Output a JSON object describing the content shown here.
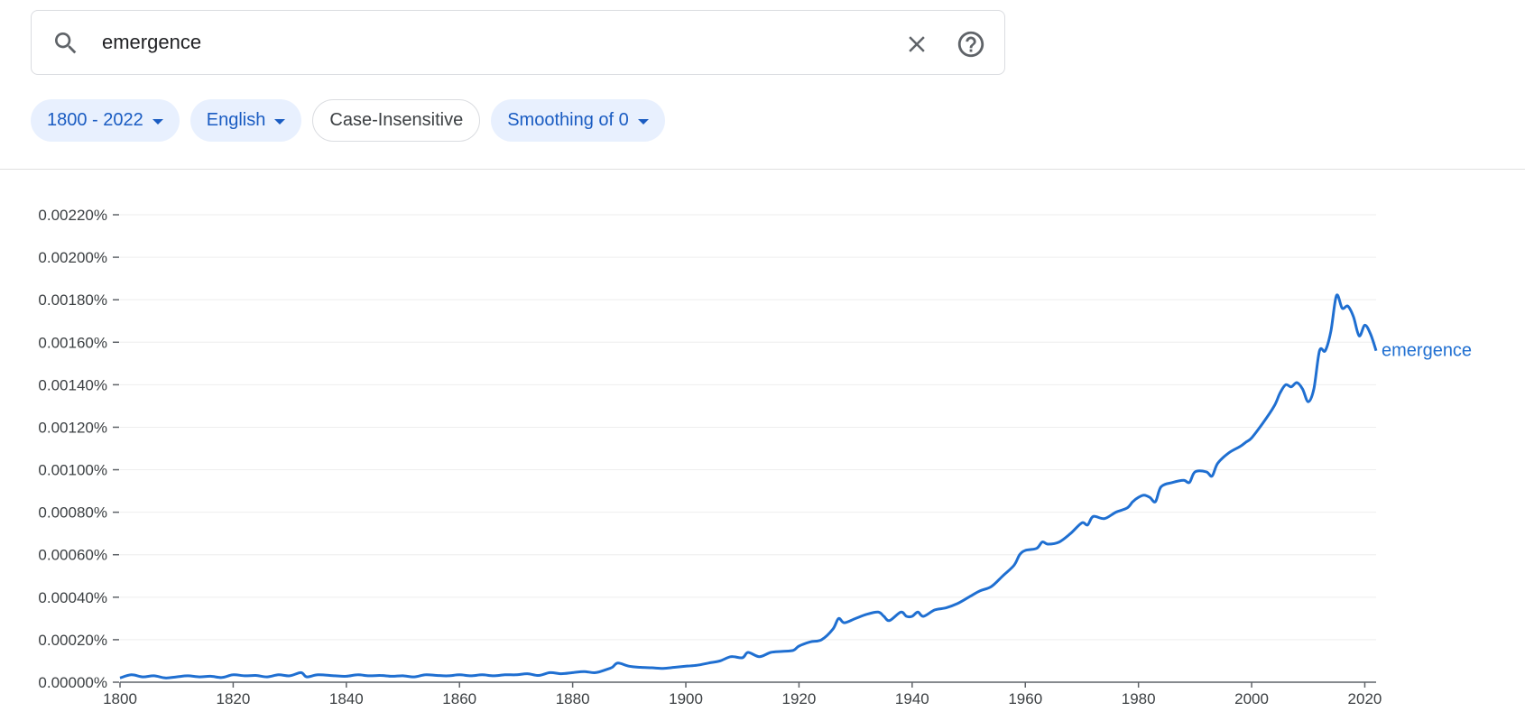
{
  "search": {
    "value": "emergence"
  },
  "icons": {
    "search": "search-icon",
    "clear": "close-icon",
    "help": "help-circle-icon",
    "dropdown": "caret-down-icon"
  },
  "filters": {
    "year_range": "1800 - 2022",
    "corpus": "English",
    "case": "Case-Insensitive",
    "smoothing": "Smoothing of 0"
  },
  "colors": {
    "line": "#1f6fd1",
    "chip_bg": "#e8f0fe",
    "chip_text": "#1a5cc2"
  },
  "chart_data": {
    "type": "line",
    "xlim": [
      1800,
      2022
    ],
    "ylim": [
      0,
      0.0022
    ],
    "x_ticks": [
      1800,
      1820,
      1840,
      1860,
      1880,
      1900,
      1920,
      1940,
      1960,
      1980,
      2000,
      2020
    ],
    "y_ticks": [
      {
        "value": 0.0,
        "label": "0.00000%"
      },
      {
        "value": 0.0002,
        "label": "0.00020%"
      },
      {
        "value": 0.0004,
        "label": "0.00040%"
      },
      {
        "value": 0.0006,
        "label": "0.00060%"
      },
      {
        "value": 0.0008,
        "label": "0.00080%"
      },
      {
        "value": 0.001,
        "label": "0.00100%"
      },
      {
        "value": 0.0012,
        "label": "0.00120%"
      },
      {
        "value": 0.0014,
        "label": "0.00140%"
      },
      {
        "value": 0.0016,
        "label": "0.00160%"
      },
      {
        "value": 0.0018,
        "label": "0.00180%"
      },
      {
        "value": 0.002,
        "label": "0.00200%"
      },
      {
        "value": 0.0022,
        "label": "0.00220%"
      }
    ],
    "series": [
      {
        "name": "emergence",
        "x": [
          1800,
          1802,
          1804,
          1806,
          1808,
          1810,
          1812,
          1814,
          1816,
          1818,
          1820,
          1822,
          1824,
          1826,
          1828,
          1830,
          1832,
          1833,
          1835,
          1838,
          1840,
          1842,
          1844,
          1846,
          1848,
          1850,
          1852,
          1854,
          1856,
          1858,
          1860,
          1862,
          1864,
          1866,
          1868,
          1870,
          1872,
          1874,
          1876,
          1878,
          1880,
          1882,
          1884,
          1886,
          1887,
          1888,
          1890,
          1892,
          1894,
          1896,
          1898,
          1900,
          1902,
          1904,
          1906,
          1908,
          1910,
          1911,
          1913,
          1915,
          1917,
          1919,
          1920,
          1922,
          1924,
          1926,
          1927,
          1928,
          1930,
          1932,
          1934,
          1935,
          1936,
          1938,
          1939,
          1940,
          1941,
          1942,
          1944,
          1946,
          1948,
          1950,
          1952,
          1954,
          1956,
          1958,
          1959,
          1960,
          1962,
          1963,
          1964,
          1966,
          1968,
          1970,
          1971,
          1972,
          1974,
          1976,
          1978,
          1979,
          1980,
          1981,
          1982,
          1983,
          1984,
          1986,
          1988,
          1989,
          1990,
          1992,
          1993,
          1994,
          1996,
          1998,
          1999,
          2000,
          2002,
          2004,
          2005,
          2006,
          2007,
          2008,
          2009,
          2010,
          2011,
          2012,
          2013,
          2014,
          2015,
          2016,
          2017,
          2018,
          2019,
          2020,
          2021,
          2022
        ],
        "y": [
          2e-05,
          3.5e-05,
          2.5e-05,
          3e-05,
          2e-05,
          2.5e-05,
          3e-05,
          2.5e-05,
          2.8e-05,
          2.2e-05,
          3.5e-05,
          3e-05,
          3.2e-05,
          2.5e-05,
          3.5e-05,
          3e-05,
          4.5e-05,
          2.5e-05,
          3.5e-05,
          3e-05,
          2.8e-05,
          3.5e-05,
          3e-05,
          3.2e-05,
          2.8e-05,
          3e-05,
          2.5e-05,
          3.5e-05,
          3.2e-05,
          3e-05,
          3.5e-05,
          3e-05,
          3.5e-05,
          3e-05,
          3.5e-05,
          3.5e-05,
          4e-05,
          3.2e-05,
          4.5e-05,
          4e-05,
          4.5e-05,
          5e-05,
          4.5e-05,
          6e-05,
          7e-05,
          9e-05,
          7.5e-05,
          7e-05,
          6.8e-05,
          6.5e-05,
          7e-05,
          7.5e-05,
          8e-05,
          9e-05,
          0.0001,
          0.00012,
          0.000115,
          0.00014,
          0.00012,
          0.00014,
          0.000145,
          0.00015,
          0.00017,
          0.00019,
          0.0002,
          0.00025,
          0.0003,
          0.00028,
          0.0003,
          0.00032,
          0.00033,
          0.00031,
          0.00029,
          0.00033,
          0.00031,
          0.00031,
          0.00033,
          0.00031,
          0.00034,
          0.00035,
          0.00037,
          0.0004,
          0.00043,
          0.00045,
          0.0005,
          0.00055,
          0.0006,
          0.00062,
          0.00063,
          0.00066,
          0.00065,
          0.00066,
          0.0007,
          0.00075,
          0.00074,
          0.00078,
          0.00077,
          0.0008,
          0.00082,
          0.00085,
          0.00087,
          0.00088,
          0.00087,
          0.00085,
          0.00092,
          0.00094,
          0.00095,
          0.00094,
          0.00099,
          0.00099,
          0.00097,
          0.00103,
          0.00108,
          0.00111,
          0.00113,
          0.00115,
          0.00122,
          0.0013,
          0.00136,
          0.0014,
          0.00139,
          0.00141,
          0.00138,
          0.00132,
          0.00138,
          0.00156,
          0.00156,
          0.00165,
          0.00182,
          0.00176,
          0.00177,
          0.00172,
          0.00163,
          0.00168,
          0.00164,
          0.00156
        ]
      }
    ]
  }
}
